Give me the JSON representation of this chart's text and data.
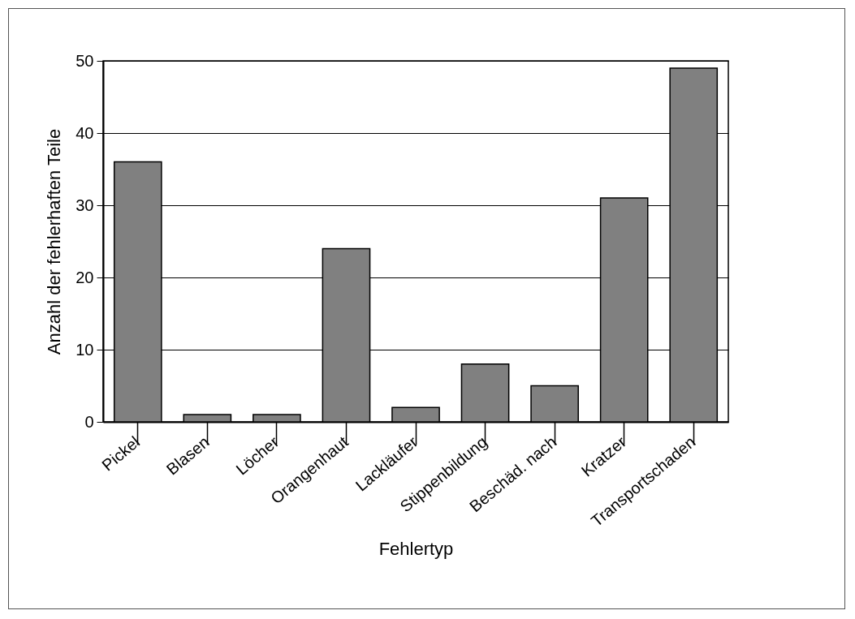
{
  "chart_data": {
    "type": "bar",
    "xlabel": "Fehlertyp",
    "ylabel": "Anzahl der fehlerhaften Teile",
    "categories": [
      "Pickel",
      "Blasen",
      "Löcher",
      "Orangenhaut",
      "Lackläufer",
      "Stippenbildung",
      "Beschäd. nach",
      "Kratzer",
      "Transportschaden"
    ],
    "values": [
      36,
      1,
      1,
      24,
      2,
      8,
      5,
      31,
      49
    ],
    "color": "#808080",
    "ylim": [
      0,
      50
    ],
    "yticks": [
      0,
      10,
      20,
      30,
      40,
      50
    ],
    "grid": "y"
  }
}
